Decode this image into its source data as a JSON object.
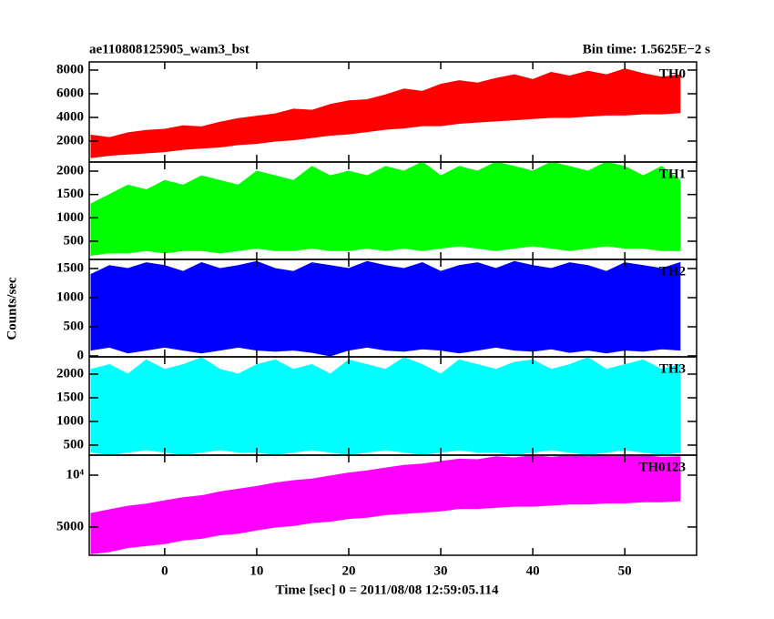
{
  "chart_data": [
    {
      "type": "band",
      "title": "ae110808125905_wam3_bst",
      "subtitle": "Bin time: 1.5625E−2 s",
      "label": "TH0",
      "color": "#ff0000",
      "x": [
        -8,
        -6,
        -4,
        -2,
        0,
        2,
        4,
        6,
        8,
        10,
        12,
        14,
        16,
        18,
        20,
        22,
        24,
        26,
        28,
        30,
        32,
        34,
        36,
        38,
        40,
        42,
        44,
        46,
        48,
        50,
        52,
        54,
        56
      ],
      "high": [
        2500,
        2300,
        2700,
        2900,
        3000,
        3300,
        3200,
        3600,
        3900,
        4100,
        4300,
        4700,
        4600,
        5100,
        5400,
        5500,
        5900,
        6400,
        6200,
        6800,
        7100,
        6900,
        7300,
        7600,
        7200,
        7800,
        7500,
        7900,
        7600,
        8100,
        7700,
        7400,
        7600
      ],
      "low": [
        600,
        800,
        900,
        1000,
        1100,
        1300,
        1400,
        1500,
        1700,
        1800,
        2000,
        2100,
        2300,
        2500,
        2600,
        2800,
        3000,
        3100,
        3300,
        3300,
        3500,
        3600,
        3700,
        3800,
        3900,
        4000,
        4000,
        4100,
        4200,
        4200,
        4300,
        4300,
        4400
      ],
      "ylim": [
        230,
        8690
      ],
      "yticks": [
        2000,
        4000,
        6000,
        8000
      ]
    },
    {
      "type": "band",
      "label": "TH1",
      "color": "#00ff00",
      "x": [
        -8,
        -6,
        -4,
        -2,
        0,
        2,
        4,
        6,
        8,
        10,
        12,
        14,
        16,
        18,
        20,
        22,
        24,
        26,
        28,
        30,
        32,
        34,
        36,
        38,
        40,
        42,
        44,
        46,
        48,
        50,
        52,
        54,
        56
      ],
      "high": [
        1300,
        1500,
        1700,
        1600,
        1800,
        1700,
        1900,
        1800,
        1700,
        2000,
        1900,
        1800,
        2100,
        1900,
        2000,
        1900,
        2100,
        2000,
        2200,
        1900,
        2100,
        2000,
        2200,
        2100,
        2000,
        2200,
        2100,
        2000,
        2200,
        2100,
        1900,
        2100,
        1800
      ],
      "low": [
        200,
        250,
        250,
        300,
        250,
        300,
        300,
        250,
        300,
        350,
        300,
        300,
        350,
        300,
        300,
        350,
        300,
        350,
        300,
        350,
        400,
        350,
        300,
        350,
        400,
        350,
        300,
        350,
        400,
        350,
        350,
        300,
        300
      ],
      "ylim": [
        110,
        2195
      ],
      "yticks": [
        500,
        1000,
        1500,
        2000
      ]
    },
    {
      "type": "band",
      "label": "TH2",
      "color": "#0000ff",
      "ylabel": "Counts/sec",
      "x": [
        -8,
        -6,
        -4,
        -2,
        0,
        2,
        4,
        6,
        8,
        10,
        12,
        14,
        16,
        18,
        20,
        22,
        24,
        26,
        28,
        30,
        32,
        34,
        36,
        38,
        40,
        42,
        44,
        46,
        48,
        50,
        52,
        54,
        56
      ],
      "high": [
        1400,
        1550,
        1500,
        1600,
        1550,
        1450,
        1600,
        1500,
        1550,
        1620,
        1500,
        1450,
        1600,
        1550,
        1500,
        1620,
        1550,
        1500,
        1600,
        1450,
        1550,
        1600,
        1500,
        1620,
        1550,
        1500,
        1600,
        1550,
        1450,
        1600,
        1550,
        1500,
        1600
      ],
      "low": [
        100,
        150,
        50,
        100,
        150,
        100,
        50,
        100,
        150,
        100,
        80,
        100,
        60,
        0,
        100,
        150,
        100,
        80,
        120,
        100,
        50,
        100,
        150,
        100,
        80,
        120,
        60,
        100,
        50,
        100,
        80,
        120,
        100
      ],
      "ylim": [
        -16,
        1656
      ],
      "yticks": [
        0,
        500,
        1000,
        1500
      ]
    },
    {
      "type": "band",
      "label": "TH3",
      "color": "#00ffff",
      "x": [
        -8,
        -6,
        -4,
        -2,
        0,
        2,
        4,
        6,
        8,
        10,
        12,
        14,
        16,
        18,
        20,
        22,
        24,
        26,
        28,
        30,
        32,
        34,
        36,
        38,
        40,
        42,
        44,
        46,
        48,
        50,
        52,
        54,
        56
      ],
      "high": [
        2100,
        2200,
        2000,
        2300,
        2100,
        2200,
        2350,
        2100,
        2000,
        2200,
        2300,
        2100,
        2200,
        2000,
        2300,
        2200,
        2100,
        2350,
        2200,
        2000,
        2300,
        2200,
        2100,
        2250,
        2300,
        2100,
        2200,
        2350,
        2100,
        2200,
        2300,
        2100,
        2200
      ],
      "low": [
        350,
        300,
        350,
        400,
        350,
        300,
        350,
        400,
        350,
        350,
        300,
        350,
        400,
        350,
        300,
        350,
        400,
        350,
        300,
        350,
        400,
        350,
        350,
        300,
        350,
        400,
        350,
        300,
        350,
        400,
        350,
        300,
        350
      ],
      "ylim": [
        288,
        2365
      ],
      "yticks": [
        500,
        1000,
        1500,
        2000
      ]
    },
    {
      "type": "band",
      "label": "TH0123",
      "color": "#ff00ff",
      "log": true,
      "xlabel": "Time [sec] 0 = 2011/08/08 12:59:05.114",
      "x": [
        -8,
        -6,
        -4,
        -2,
        0,
        2,
        4,
        6,
        8,
        10,
        12,
        14,
        16,
        18,
        20,
        22,
        24,
        26,
        28,
        30,
        32,
        34,
        36,
        38,
        40,
        42,
        44,
        46,
        48,
        50,
        52,
        54,
        56
      ],
      "high": [
        6000,
        6300,
        6600,
        6800,
        7100,
        7400,
        7600,
        8000,
        8300,
        8600,
        9000,
        9300,
        9500,
        9900,
        10300,
        10600,
        11000,
        11400,
        11600,
        12000,
        12400,
        12300,
        12800,
        12600,
        13000,
        12700,
        13000,
        12800,
        13100,
        12900,
        13000,
        12700,
        12800
      ],
      "low": [
        3500,
        3600,
        3800,
        3900,
        4000,
        4200,
        4300,
        4500,
        4600,
        4800,
        5000,
        5100,
        5300,
        5400,
        5600,
        5700,
        5900,
        6000,
        6100,
        6200,
        6400,
        6400,
        6500,
        6600,
        6600,
        6700,
        6800,
        6800,
        6900,
        6900,
        7000,
        7000,
        7100
      ],
      "ylim": [
        3427,
        13070
      ],
      "yticks": [
        5000,
        {
          "value": 10000,
          "label": "10⁴"
        }
      ],
      "xlim": [
        -8.2,
        57.8
      ],
      "xticks": [
        0,
        10,
        20,
        30,
        40,
        50
      ]
    }
  ]
}
